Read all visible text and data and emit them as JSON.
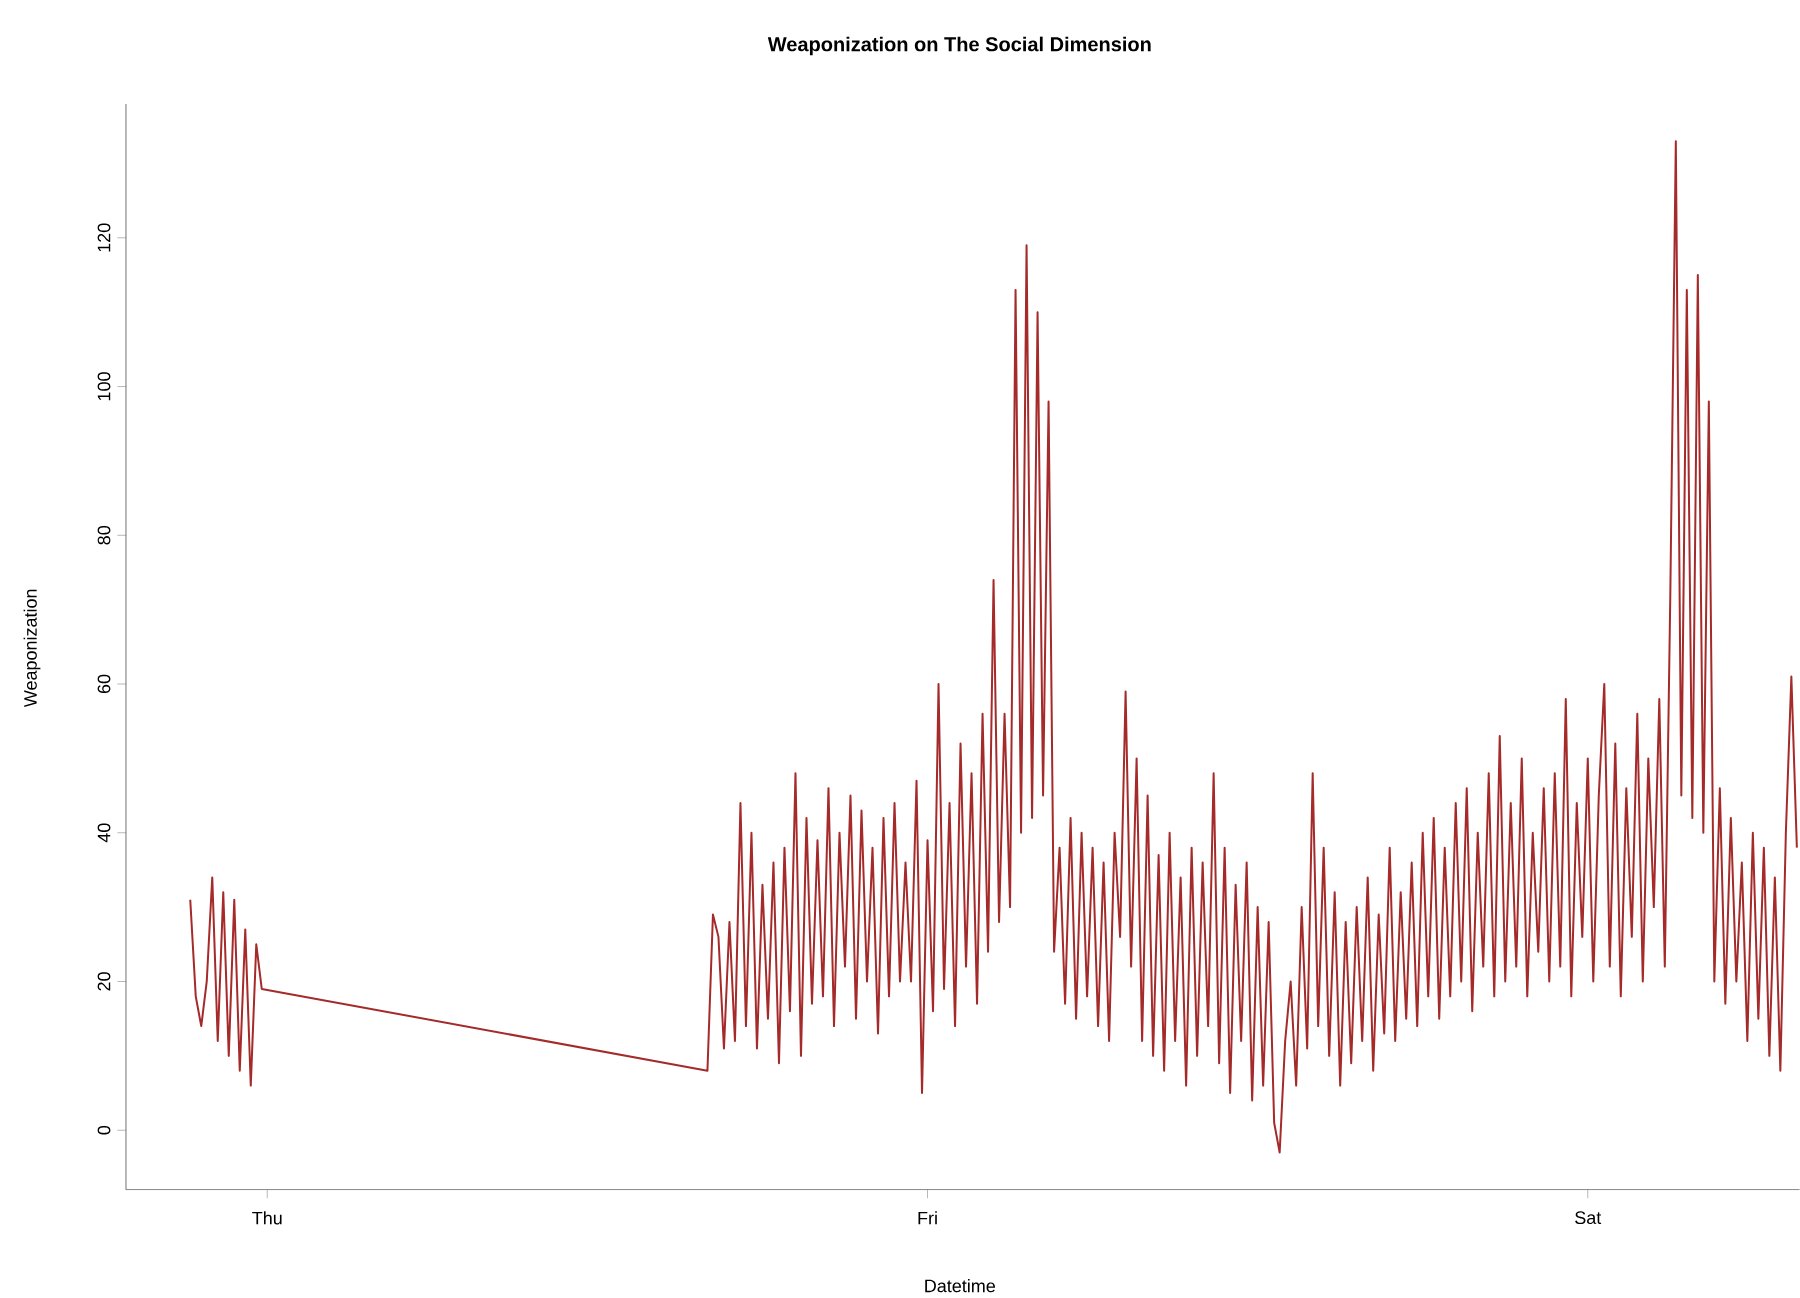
{
  "chart_data": {
    "type": "line",
    "title": "Weaponization on The Social Dimension",
    "xlabel": "Datetime",
    "ylabel": "Weaponization",
    "ylim": [
      -8,
      138
    ],
    "yticks": [
      0,
      20,
      40,
      60,
      80,
      100,
      120
    ],
    "categories": [
      null,
      null,
      null,
      null,
      null,
      null,
      null,
      null,
      null,
      null,
      null,
      null,
      null,
      null,
      "Thu",
      null,
      null,
      null,
      null,
      null,
      null,
      null,
      null,
      null,
      null,
      null,
      null,
      null,
      null,
      null,
      null,
      null,
      null,
      null,
      null,
      null,
      null,
      null,
      null,
      null,
      null,
      null,
      null,
      null,
      null,
      null,
      null,
      null,
      null,
      null,
      null,
      null,
      null,
      null,
      null,
      null,
      null,
      null,
      null,
      null,
      null,
      null,
      null,
      null,
      null,
      null,
      null,
      null,
      null,
      null,
      null,
      null,
      null,
      null,
      null,
      null,
      null,
      null,
      null,
      null,
      null,
      null,
      null,
      null,
      null,
      null,
      null,
      null,
      null,
      null,
      null,
      null,
      null,
      null,
      null,
      null,
      null,
      null,
      null,
      null,
      null,
      null,
      null,
      null,
      null,
      null,
      null,
      null,
      null,
      null,
      null,
      null,
      null,
      null,
      null,
      null,
      null,
      null,
      null,
      null,
      null,
      null,
      null,
      null,
      null,
      null,
      null,
      null,
      null,
      null,
      null,
      null,
      null,
      null,
      "Fri",
      null,
      null,
      null,
      null,
      null,
      null,
      null,
      null,
      null,
      null,
      null,
      null,
      null,
      null,
      null,
      null,
      null,
      null,
      null,
      null,
      null,
      null,
      null,
      null,
      null,
      null,
      null,
      null,
      null,
      null,
      null,
      null,
      null,
      null,
      null,
      null,
      null,
      null,
      null,
      null,
      null,
      null,
      null,
      null,
      null,
      null,
      null,
      null,
      null,
      null,
      null,
      null,
      null,
      null,
      null,
      null,
      null,
      null,
      null,
      null,
      null,
      null,
      null,
      null,
      null,
      null,
      null,
      null,
      null,
      null,
      null,
      null,
      null,
      null,
      null,
      null,
      null,
      null,
      null,
      null,
      null,
      null,
      null,
      null,
      null,
      null,
      null,
      null,
      null,
      null,
      null,
      null,
      null,
      null,
      null,
      null,
      null,
      null,
      null,
      null,
      null,
      null,
      null,
      null,
      null,
      null,
      null,
      null,
      null,
      null,
      null,
      null,
      null,
      null,
      null,
      null,
      null,
      null,
      null,
      "Sat",
      null,
      null,
      null,
      null,
      null,
      null,
      null,
      null,
      null,
      null,
      null,
      null,
      null,
      null,
      null,
      null,
      null,
      null,
      null,
      null,
      null,
      null,
      null,
      null,
      null,
      null,
      null,
      null,
      null,
      null,
      null,
      null,
      null,
      null,
      null,
      null,
      null,
      null
    ],
    "series": [
      {
        "color": "#a52a2a",
        "values": [
          31,
          18,
          14,
          20,
          34,
          12,
          32,
          10,
          31,
          8,
          27,
          6,
          25,
          19,
          null,
          null,
          null,
          null,
          null,
          null,
          null,
          null,
          null,
          null,
          null,
          null,
          null,
          null,
          null,
          null,
          null,
          null,
          null,
          null,
          null,
          null,
          null,
          null,
          null,
          null,
          null,
          null,
          null,
          null,
          null,
          null,
          null,
          null,
          null,
          null,
          null,
          null,
          null,
          null,
          null,
          null,
          null,
          null,
          null,
          null,
          null,
          null,
          null,
          null,
          null,
          null,
          null,
          null,
          null,
          null,
          null,
          null,
          null,
          null,
          null,
          null,
          null,
          null,
          null,
          null,
          null,
          null,
          null,
          null,
          null,
          null,
          null,
          null,
          null,
          null,
          null,
          null,
          null,
          null,
          8,
          29,
          26,
          11,
          28,
          12,
          44,
          14,
          40,
          11,
          33,
          15,
          36,
          9,
          38,
          16,
          48,
          10,
          42,
          17,
          39,
          18,
          46,
          14,
          40,
          22,
          45,
          15,
          43,
          20,
          38,
          13,
          42,
          18,
          44,
          20,
          36,
          20,
          47,
          5,
          39,
          16,
          60,
          19,
          44,
          14,
          52,
          22,
          48,
          17,
          56,
          24,
          74,
          28,
          56,
          30,
          113,
          40,
          119,
          42,
          110,
          45,
          98,
          24,
          38,
          17,
          42,
          15,
          40,
          18,
          38,
          14,
          36,
          12,
          40,
          26,
          59,
          22,
          50,
          12,
          45,
          10,
          37,
          8,
          40,
          12,
          34,
          6,
          38,
          10,
          36,
          14,
          48,
          9,
          38,
          5,
          33,
          12,
          36,
          4,
          30,
          6,
          28,
          1,
          -3,
          12,
          20,
          6,
          30,
          11,
          48,
          14,
          38,
          10,
          32,
          6,
          28,
          9,
          30,
          12,
          34,
          8,
          29,
          13,
          38,
          12,
          32,
          15,
          36,
          14,
          40,
          18,
          42,
          15,
          38,
          18,
          44,
          20,
          46,
          16,
          40,
          22,
          48,
          18,
          53,
          20,
          44,
          22,
          50,
          18,
          40,
          24,
          46,
          20,
          48,
          22,
          58,
          18,
          44,
          26,
          50,
          20,
          45,
          60,
          22,
          52,
          18,
          46,
          26,
          56,
          20,
          50,
          30,
          58,
          22,
          72,
          133,
          45,
          113,
          42,
          115,
          40,
          98,
          20,
          46,
          17,
          42,
          20,
          36,
          12,
          40,
          15,
          38,
          10,
          34,
          8,
          40,
          61,
          38
        ]
      }
    ]
  }
}
